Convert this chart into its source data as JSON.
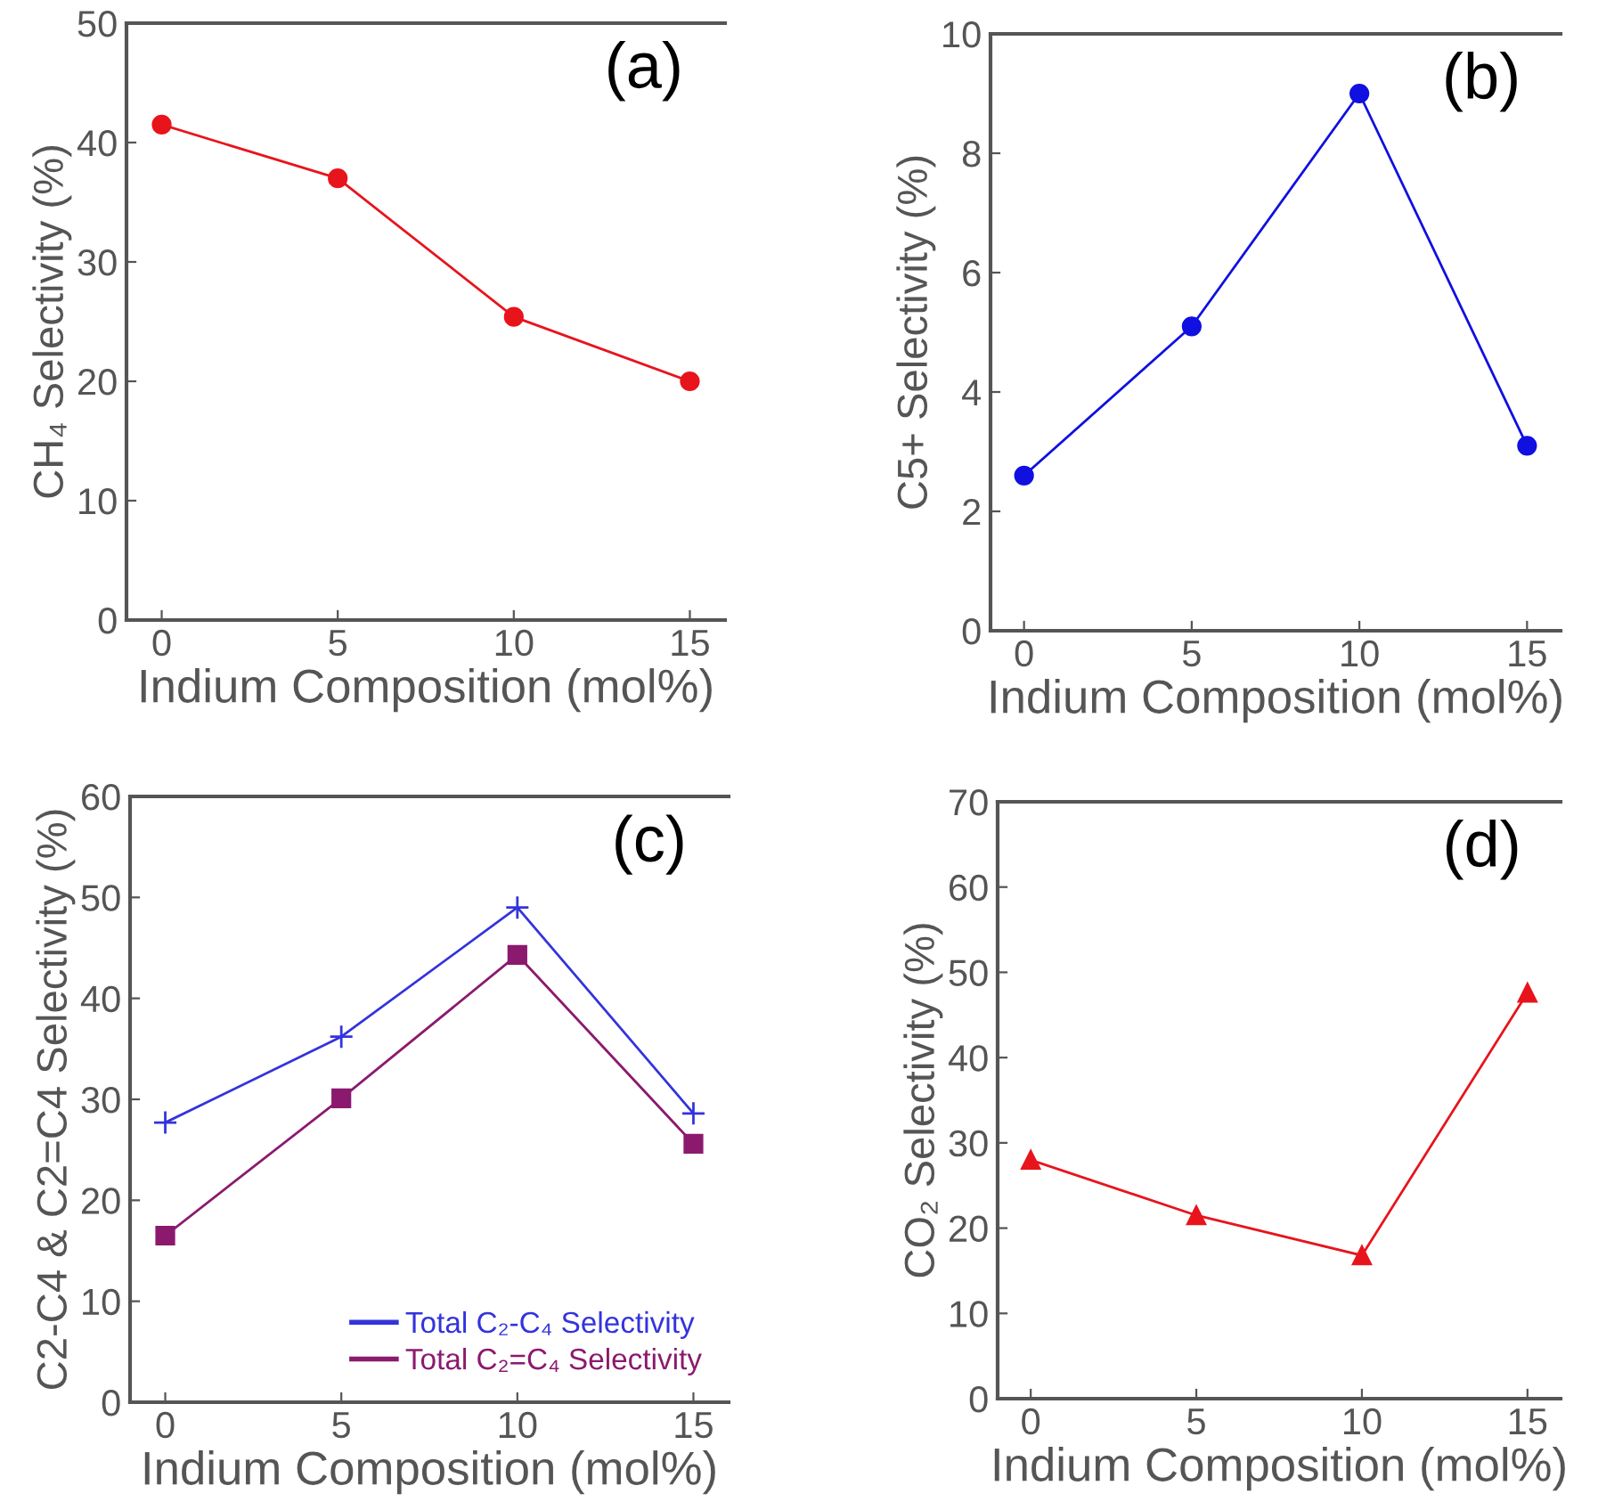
{
  "chart_data": [
    {
      "type": "line",
      "xlabel": "Indium Composition (mol%)",
      "ylabel": "CH₄ Selectivity (%)",
      "annotations": [
        "(a)"
      ],
      "x": [
        0,
        5,
        10,
        15
      ],
      "xlim": [
        -1,
        16
      ],
      "xticks": [
        0,
        5,
        10,
        15
      ],
      "ylim": [
        0,
        50
      ],
      "yticks": [
        0,
        10,
        20,
        30,
        40,
        50
      ],
      "marker": "circle",
      "grid": false,
      "legend": false,
      "series": [
        {
          "color": "#e8141c",
          "values": [
            41.5,
            37,
            25.4,
            20
          ]
        }
      ]
    },
    {
      "type": "line",
      "xlabel": "Indium Composition (mol%)",
      "ylabel": "C5+ Selectivity (%)",
      "annotations": [
        "(b)"
      ],
      "x": [
        0,
        5,
        10,
        15
      ],
      "xlim": [
        -1,
        16
      ],
      "xticks": [
        0,
        5,
        10,
        15
      ],
      "ylim": [
        0,
        10
      ],
      "yticks": [
        0,
        2,
        4,
        6,
        8,
        10
      ],
      "marker": "circle",
      "grid": false,
      "legend": false,
      "series": [
        {
          "color": "#1010e0",
          "values": [
            2.6,
            5.1,
            9.0,
            3.1
          ]
        }
      ]
    },
    {
      "type": "line",
      "xlabel": "Indium Composition (mol%)",
      "ylabel": "C2-C4 & C2=C4 Selectivity (%)",
      "annotations": [
        "(c)"
      ],
      "x": [
        0,
        5,
        10,
        15
      ],
      "xlim": [
        -1,
        16
      ],
      "xticks": [
        0,
        5,
        10,
        15
      ],
      "ylim": [
        0,
        60
      ],
      "yticks": [
        0,
        10,
        20,
        30,
        40,
        50,
        60
      ],
      "grid": false,
      "legend": "bottom right",
      "series": [
        {
          "name": "Total C₂-C₄ Selectivity",
          "color": "#3333dd",
          "marker": "cross",
          "values": [
            27.7,
            36.2,
            49,
            28.6
          ]
        },
        {
          "name": "Total C₂=C₄ Selectivity",
          "color": "#8b1a6e",
          "marker": "square",
          "values": [
            16.5,
            30.1,
            44.3,
            25.6
          ]
        }
      ]
    },
    {
      "type": "line",
      "xlabel": "Indium Composition (mol%)",
      "ylabel": "CO₂ Selectivity (%)",
      "annotations": [
        "(d)"
      ],
      "x": [
        0,
        5,
        10,
        15
      ],
      "xlim": [
        -1,
        16
      ],
      "xticks": [
        0,
        5,
        10,
        15
      ],
      "ylim": [
        0,
        70
      ],
      "yticks": [
        0,
        10,
        20,
        30,
        40,
        50,
        60,
        70
      ],
      "marker": "triangle",
      "grid": false,
      "legend": false,
      "series": [
        {
          "color": "#e8141c",
          "values": [
            28,
            21.5,
            16.8,
            47.6
          ]
        }
      ]
    }
  ]
}
